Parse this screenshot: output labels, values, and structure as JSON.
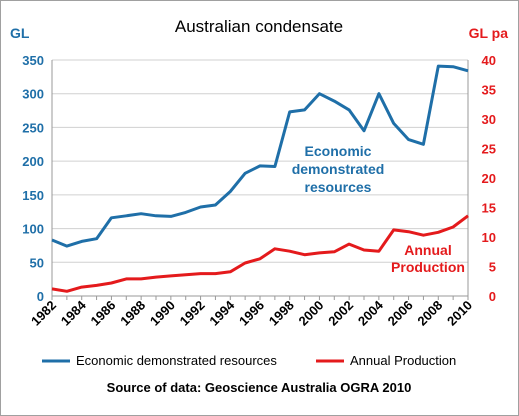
{
  "chart_data": {
    "type": "line",
    "title": "Australian condensate",
    "left_axis": {
      "unit_label": "GL",
      "ylim": [
        0,
        350
      ],
      "ticks": [
        "0",
        "50",
        "100",
        "150",
        "200",
        "250",
        "300",
        "350"
      ]
    },
    "right_axis": {
      "unit_label": "GL pa",
      "ylim": [
        0,
        40
      ],
      "ticks": [
        "0",
        "5",
        "10",
        "15",
        "20",
        "25",
        "30",
        "35",
        "40"
      ]
    },
    "x": [
      1982,
      1983,
      1984,
      1985,
      1986,
      1987,
      1988,
      1989,
      1990,
      1991,
      1992,
      1993,
      1994,
      1995,
      1996,
      1997,
      1998,
      1999,
      2000,
      2001,
      2002,
      2003,
      2004,
      2005,
      2006,
      2007,
      2008,
      2009,
      2010
    ],
    "x_tick_labels": [
      "1982",
      "1984",
      "1986",
      "1988",
      "1990",
      "1992",
      "1994",
      "1996",
      "1998",
      "2000",
      "2002",
      "2004",
      "2006",
      "2008",
      "2010"
    ],
    "series": [
      {
        "name": "Economic demonstrated resources",
        "axis": "left",
        "color": "#1f6fa8",
        "values": [
          83,
          74,
          81,
          85,
          116,
          119,
          122,
          119,
          118,
          124,
          132,
          135,
          155,
          182,
          193,
          192,
          273,
          276,
          300,
          289,
          276,
          245,
          300,
          256,
          232,
          225,
          341,
          340,
          334
        ]
      },
      {
        "name": "Annual Production",
        "axis": "right",
        "color": "#e41a1c",
        "values": [
          1.2,
          0.8,
          1.5,
          1.8,
          2.2,
          2.9,
          2.9,
          3.2,
          3.4,
          3.6,
          3.8,
          3.8,
          4.1,
          5.6,
          6.3,
          8.0,
          7.6,
          7.0,
          7.3,
          7.5,
          8.8,
          7.8,
          7.6,
          11.2,
          10.9,
          10.3,
          10.8,
          11.7,
          13.6
        ]
      }
    ],
    "annotations": [
      {
        "lines": [
          "Economic",
          "demonstrated",
          "resources"
        ],
        "color": "#1f6fa8"
      },
      {
        "lines": [
          "Annual",
          "Production"
        ],
        "color": "#e41a1c"
      }
    ],
    "legend": {
      "placement": "bottom"
    },
    "source": "Source of data: Geoscience Australia OGRA 2010",
    "grid": true
  },
  "colors": {
    "left_axis": "#1f6fa8",
    "right_axis": "#e41a1c",
    "grid": "#d0d0d0",
    "frame": "#999999"
  }
}
